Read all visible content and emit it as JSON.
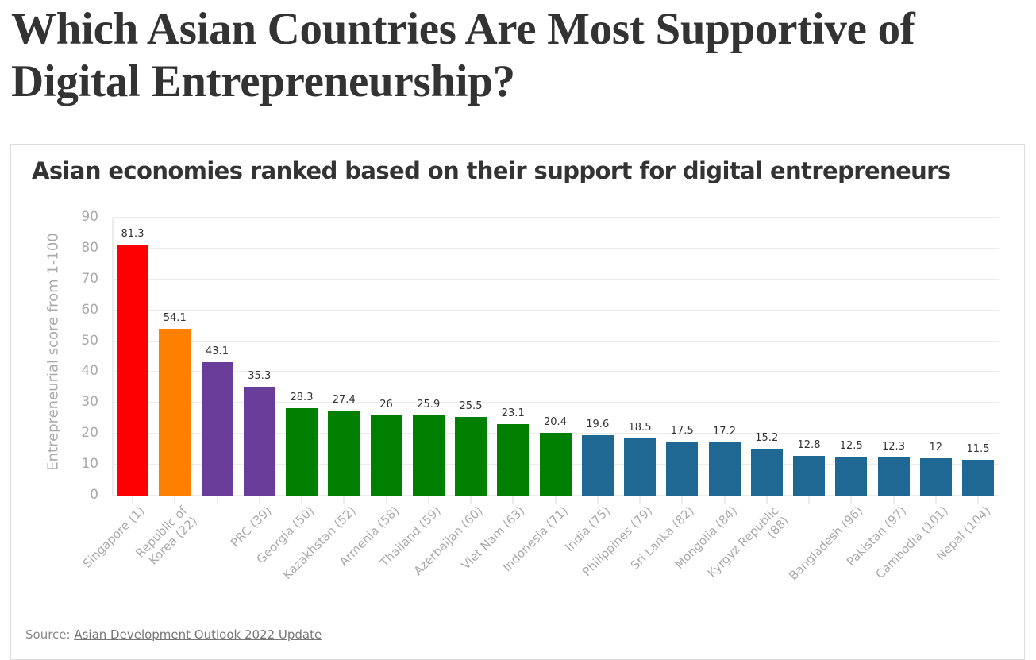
{
  "page": {
    "title": "Which Asian Countries Are Most Supportive of Digital Entrepreneurship?"
  },
  "chart": {
    "title": "Asian economies ranked based on their support for digital entrepreneurs",
    "source_prefix": "Source: ",
    "source_link": "Asian Development Outlook 2022 Update"
  },
  "colors": {
    "singapore": "#ff0000",
    "korea": "#ff8000",
    "purple": "#6a3d9a",
    "green": "#007f00",
    "blue": "#1f6893",
    "grid": "#ececec",
    "axis_text": "#aaaaaa",
    "title_text": "#333333"
  },
  "chart_data": {
    "type": "bar",
    "title": "Asian economies ranked based on their support for digital entrepreneurs",
    "xlabel": "",
    "ylabel": "Entrepreneurial score from 1-100",
    "ylim": [
      0,
      90
    ],
    "yticks": [
      0,
      10,
      20,
      30,
      40,
      50,
      60,
      70,
      80,
      90
    ],
    "grid": true,
    "legend": null,
    "categories": [
      "Singapore (1)",
      "Republic of\nKorea (22)",
      "",
      "PRC (39)",
      "Georgia (50)",
      "Kazakhstan (52)",
      "Armenia (58)",
      "Thailand (59)",
      "Azerbaijan (60)",
      "Viet Nam (63)",
      "Indonesia (71)",
      "India (75)",
      "Philippines (79)",
      "Sri Lanka (82)",
      "Mongolia (84)",
      "Kyrgyz Republic\n(88)",
      "",
      "Bangladesh (96)",
      "Pakistan (97)",
      "Cambodia (101)",
      "Nepal (104)"
    ],
    "values": [
      81.3,
      54.1,
      43.1,
      35.3,
      28.3,
      27.4,
      26,
      25.9,
      25.5,
      23.1,
      20.4,
      19.6,
      18.5,
      17.5,
      17.2,
      15.2,
      12.8,
      12.5,
      12.3,
      12,
      11.5
    ],
    "value_labels": [
      "81.3",
      "54.1",
      "43.1",
      "35.3",
      "28.3",
      "27.4",
      "26",
      "25.9",
      "25.5",
      "23.1",
      "20.4",
      "19.6",
      "18.5",
      "17.5",
      "17.2",
      "15.2",
      "12.8",
      "12.5",
      "12.3",
      "12",
      "11.5"
    ],
    "bar_colors": [
      "#ff0000",
      "#ff8000",
      "#6a3d9a",
      "#6a3d9a",
      "#007f00",
      "#007f00",
      "#007f00",
      "#007f00",
      "#007f00",
      "#007f00",
      "#007f00",
      "#1f6893",
      "#1f6893",
      "#1f6893",
      "#1f6893",
      "#1f6893",
      "#1f6893",
      "#1f6893",
      "#1f6893",
      "#1f6893",
      "#1f6893"
    ]
  }
}
